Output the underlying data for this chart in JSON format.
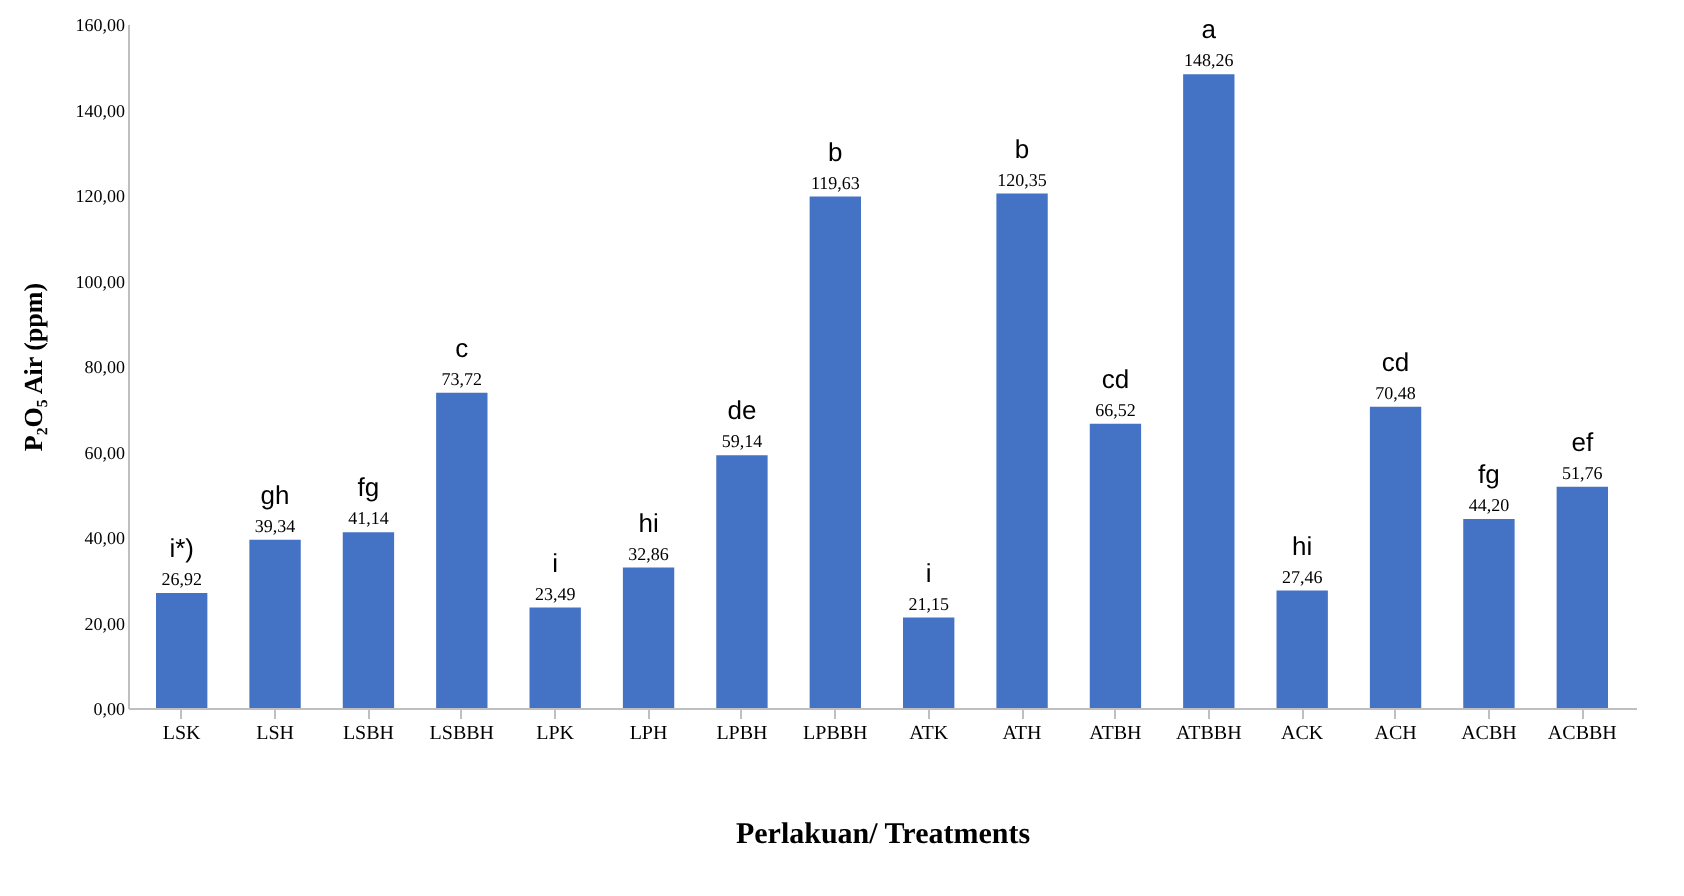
{
  "chart_data": {
    "type": "bar",
    "xlabel": "Perlakuan/ Treatments",
    "ylabel": "P₂O₅ Air (ppm)",
    "categories": [
      "LSK",
      "LSH",
      "LSBH",
      "LSBBH",
      "LPK",
      "LPH",
      "LPBH",
      "LPBBH",
      "ATK",
      "ATH",
      "ATBH",
      "ATBBH",
      "ACK",
      "ACH",
      "ACBH",
      "ACBBH"
    ],
    "values": [
      26.92,
      39.34,
      41.14,
      73.72,
      23.49,
      32.86,
      59.14,
      119.63,
      21.15,
      120.35,
      66.52,
      148.26,
      27.46,
      70.48,
      44.2,
      51.76
    ],
    "value_labels": [
      "26,92",
      "39,34",
      "41,14",
      "73,72",
      "23,49",
      "32,86",
      "59,14",
      "119,63",
      "21,15",
      "120,35",
      "66,52",
      "148,26",
      "27,46",
      "70,48",
      "44,20",
      "51,76"
    ],
    "color": "#4472c4",
    "ylim": [
      0,
      160
    ],
    "yticks": [
      {
        "value": 0,
        "label": "0,00"
      },
      {
        "value": 20,
        "label": "20,00"
      },
      {
        "value": 40,
        "label": "40,00"
      },
      {
        "value": 60,
        "label": "60,00"
      },
      {
        "value": 80,
        "label": "80,00"
      },
      {
        "value": 100,
        "label": "100,00"
      },
      {
        "value": 120,
        "label": "120,00"
      },
      {
        "value": 140,
        "label": "140,00"
      },
      {
        "value": 160,
        "label": "160,00"
      }
    ],
    "annotations": [
      {
        "text": "i*)",
        "x": "LSK",
        "y": 26.92
      },
      {
        "text": "gh",
        "x": "LSH",
        "y": 39.34
      },
      {
        "text": "fg",
        "x": "LSBH",
        "y": 41.14
      },
      {
        "text": "c",
        "x": "LSBBH",
        "y": 73.72
      },
      {
        "text": "i",
        "x": "LPK",
        "y": 23.49
      },
      {
        "text": "hi",
        "x": "LPH",
        "y": 32.86
      },
      {
        "text": "de",
        "x": "LPBH",
        "y": 59.14
      },
      {
        "text": "b",
        "x": "LPBBH",
        "y": 119.63
      },
      {
        "text": "i",
        "x": "ATK",
        "y": 21.15
      },
      {
        "text": "b",
        "x": "ATH",
        "y": 120.35
      },
      {
        "text": "cd",
        "x": "ATBH",
        "y": 66.52
      },
      {
        "text": "a",
        "x": "ATBBH",
        "y": 148.26
      },
      {
        "text": "hi",
        "x": "ACK",
        "y": 27.46
      },
      {
        "text": "cd",
        "x": "ACH",
        "y": 70.48
      },
      {
        "text": "fg",
        "x": "ACBH",
        "y": 44.2
      },
      {
        "text": "ef",
        "x": "ACBBH",
        "y": 51.76
      }
    ],
    "grid": false
  }
}
